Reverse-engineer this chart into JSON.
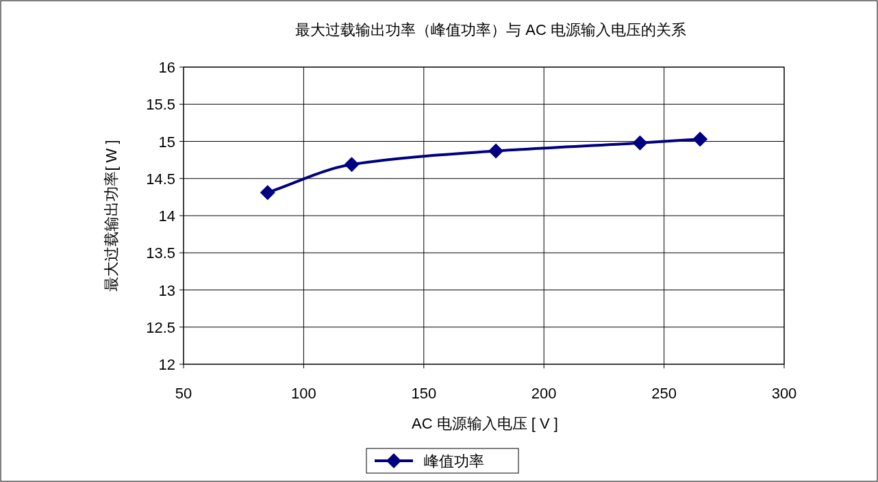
{
  "chart_data": {
    "type": "line",
    "title": "最大过载输出功率（峰值功率）与 AC 电源输入电压的关系",
    "xlabel": "AC 电源输入电压 [ V ]",
    "ylabel": "最大过载输出功率[ W ]",
    "x": [
      85,
      120,
      180,
      240,
      265
    ],
    "series": [
      {
        "name": "峰值功率",
        "color": "#000080",
        "values": [
          14.31,
          14.69,
          14.87,
          14.98,
          15.03
        ]
      }
    ],
    "xlim": [
      50,
      300
    ],
    "xticks": [
      50,
      100,
      150,
      200,
      250,
      300
    ],
    "ylim": [
      12,
      16
    ],
    "yticks": [
      12,
      12.5,
      13,
      13.5,
      14,
      14.5,
      15,
      15.5,
      16
    ],
    "grid": true,
    "legend": "bottom",
    "marker": "diamond",
    "line_style": "solid"
  }
}
